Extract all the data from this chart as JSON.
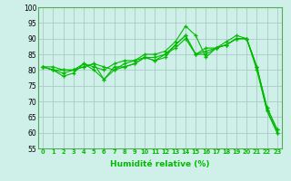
{
  "xlabel": "Humidité relative (%)",
  "background_color": "#cff0e8",
  "grid_color": "#aaccc4",
  "line_color": "#00bb00",
  "marker": "+",
  "ylim": [
    55,
    100
  ],
  "xlim": [
    -0.5,
    23.5
  ],
  "yticks": [
    55,
    60,
    65,
    70,
    75,
    80,
    85,
    90,
    95,
    100
  ],
  "xticks": [
    0,
    1,
    2,
    3,
    4,
    5,
    6,
    7,
    8,
    9,
    10,
    11,
    12,
    13,
    14,
    15,
    16,
    17,
    18,
    19,
    20,
    21,
    22,
    23
  ],
  "lines": [
    [
      81,
      80,
      78,
      79,
      82,
      80,
      77,
      81,
      81,
      82,
      84,
      83,
      84,
      88,
      91,
      85,
      85,
      87,
      88,
      90,
      90,
      81,
      67,
      60
    ],
    [
      81,
      80,
      80,
      80,
      81,
      82,
      81,
      80,
      82,
      83,
      84,
      84,
      85,
      87,
      90,
      85,
      87,
      87,
      88,
      90,
      90,
      81,
      68,
      61
    ],
    [
      81,
      81,
      80,
      80,
      82,
      81,
      80,
      82,
      83,
      83,
      85,
      85,
      86,
      89,
      94,
      91,
      84,
      87,
      89,
      91,
      90,
      81,
      68,
      61
    ],
    [
      81,
      80,
      79,
      80,
      81,
      82,
      77,
      80,
      81,
      82,
      84,
      83,
      85,
      88,
      91,
      85,
      86,
      87,
      88,
      90,
      90,
      80,
      67,
      60
    ]
  ],
  "xlabel_fontsize": 6.5,
  "xtick_fontsize": 4.8,
  "ytick_fontsize": 5.5,
  "linewidth": 0.8,
  "markersize": 3.5
}
